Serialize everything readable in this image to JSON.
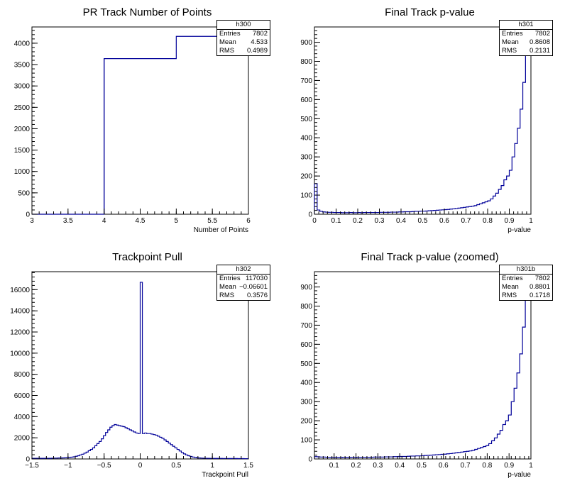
{
  "chart_data": [
    {
      "type": "histogram",
      "title": "PR Track Number of Points",
      "xlabel": "Number of Points",
      "ylabel": "",
      "xlim": [
        3,
        6
      ],
      "ylim": [
        0,
        4380
      ],
      "xticks": [
        "3",
        "3.5",
        "4",
        "4.5",
        "5",
        "5.5",
        "6"
      ],
      "xtick_values": [
        3,
        3.5,
        4,
        4.5,
        5,
        5.5,
        6
      ],
      "yticks": [
        "0",
        "500",
        "1000",
        "1500",
        "2000",
        "2500",
        "3000",
        "3500",
        "4000"
      ],
      "ytick_values": [
        0,
        500,
        1000,
        1500,
        2000,
        2500,
        3000,
        3500,
        4000
      ],
      "bin_edges": [
        3,
        4,
        5,
        6
      ],
      "values": [
        0,
        3640,
        4160
      ],
      "stats": {
        "name": "h300",
        "rows": [
          [
            "Entries",
            "7802"
          ],
          [
            "Mean",
            "4.533"
          ],
          [
            "RMS",
            "0.4989"
          ]
        ]
      }
    },
    {
      "type": "histogram",
      "title": "Final Track p-value",
      "xlabel": "p-value",
      "ylabel": "",
      "xlim": [
        0,
        1
      ],
      "ylim": [
        0,
        980
      ],
      "xticks": [
        "0",
        "0.1",
        "0.2",
        "0.3",
        "0.4",
        "0.5",
        "0.6",
        "0.7",
        "0.8",
        "0.9",
        "1"
      ],
      "xtick_values": [
        0,
        0.1,
        0.2,
        0.3,
        0.4,
        0.5,
        0.6,
        0.7,
        0.8,
        0.9,
        1
      ],
      "yticks": [
        "0",
        "100",
        "200",
        "300",
        "400",
        "500",
        "600",
        "700",
        "800",
        "900"
      ],
      "ytick_values": [
        0,
        100,
        200,
        300,
        400,
        500,
        600,
        700,
        800,
        900
      ],
      "bin_range": [
        0,
        1
      ],
      "values": [
        160,
        22,
        15,
        12,
        11,
        10,
        10,
        9,
        9,
        9,
        8,
        8,
        8,
        9,
        8,
        8,
        9,
        8,
        9,
        9,
        9,
        9,
        9,
        9,
        10,
        10,
        10,
        10,
        11,
        11,
        11,
        12,
        12,
        13,
        13,
        13,
        14,
        15,
        15,
        16,
        16,
        17,
        18,
        19,
        20,
        21,
        22,
        23,
        24,
        25,
        27,
        28,
        30,
        32,
        34,
        36,
        38,
        40,
        42,
        45,
        50,
        55,
        60,
        65,
        70,
        80,
        95,
        110,
        130,
        150,
        180,
        200,
        230,
        300,
        370,
        450,
        550,
        690,
        830,
        980
      ],
      "stats": {
        "name": "h301",
        "rows": [
          [
            "Entries",
            "7802"
          ],
          [
            "Mean",
            "0.8608"
          ],
          [
            "RMS",
            "0.2131"
          ]
        ]
      }
    },
    {
      "type": "histogram",
      "title": "Trackpoint Pull",
      "xlabel": "Trackpoint Pull",
      "ylabel": "",
      "xlim": [
        -1.5,
        1.5
      ],
      "ylim": [
        0,
        17700
      ],
      "xticks": [
        "−1.5",
        "−1",
        "−0.5",
        "0",
        "0.5",
        "1",
        "1.5"
      ],
      "xtick_values": [
        -1.5,
        -1,
        -0.5,
        0,
        0.5,
        1,
        1.5
      ],
      "yticks": [
        "0",
        "2000",
        "4000",
        "6000",
        "8000",
        "10000",
        "12000",
        "14000",
        "16000"
      ],
      "ytick_values": [
        0,
        2000,
        4000,
        6000,
        8000,
        10000,
        12000,
        14000,
        16000
      ],
      "bin_range": [
        -1.5,
        1.5
      ],
      "values": [
        60,
        60,
        60,
        60,
        60,
        60,
        60,
        60,
        60,
        70,
        80,
        80,
        90,
        90,
        100,
        110,
        120,
        140,
        170,
        200,
        250,
        300,
        380,
        450,
        550,
        650,
        780,
        900,
        1050,
        1250,
        1450,
        1650,
        1900,
        2200,
        2500,
        2750,
        3000,
        3150,
        3250,
        3200,
        3150,
        3100,
        3050,
        2950,
        2850,
        2750,
        2650,
        2550,
        2450,
        2400,
        16700,
        2400,
        2450,
        2400,
        2400,
        2350,
        2300,
        2250,
        2150,
        2050,
        1950,
        1800,
        1650,
        1500,
        1350,
        1200,
        1050,
        900,
        750,
        600,
        480,
        380,
        300,
        240,
        180,
        140,
        110,
        90,
        80,
        70,
        60,
        60,
        55,
        55,
        50,
        50,
        50,
        50,
        45,
        45,
        45,
        40,
        40,
        40,
        40,
        35,
        35,
        35,
        30,
        30
      ],
      "stats": {
        "name": "h302",
        "rows": [
          [
            "Entries",
            "117030"
          ],
          [
            "Mean",
            "−0.06601"
          ],
          [
            "RMS",
            "0.3576"
          ]
        ]
      }
    },
    {
      "type": "histogram",
      "title": "Final Track p-value (zoomed)",
      "xlabel": "p-value",
      "ylabel": "",
      "xlim": [
        0.01,
        1
      ],
      "ylim": [
        0,
        980
      ],
      "xticks": [
        "0.1",
        "0.2",
        "0.3",
        "0.4",
        "0.5",
        "0.6",
        "0.7",
        "0.8",
        "0.9",
        "1"
      ],
      "xtick_values": [
        0.1,
        0.2,
        0.3,
        0.4,
        0.5,
        0.6,
        0.7,
        0.8,
        0.9,
        1
      ],
      "yticks": [
        "0",
        "100",
        "200",
        "300",
        "400",
        "500",
        "600",
        "700",
        "800",
        "900"
      ],
      "ytick_values": [
        0,
        100,
        200,
        300,
        400,
        500,
        600,
        700,
        800,
        900
      ],
      "bin_range": [
        0.01,
        1
      ],
      "values": [
        12,
        11,
        10,
        10,
        9,
        9,
        9,
        8,
        8,
        8,
        9,
        8,
        8,
        9,
        8,
        9,
        9,
        9,
        9,
        9,
        9,
        10,
        10,
        10,
        10,
        11,
        11,
        11,
        12,
        12,
        13,
        13,
        13,
        14,
        15,
        15,
        16,
        16,
        17,
        18,
        19,
        20,
        21,
        22,
        23,
        24,
        25,
        27,
        28,
        30,
        32,
        34,
        36,
        38,
        40,
        42,
        45,
        50,
        55,
        60,
        65,
        70,
        80,
        95,
        110,
        130,
        150,
        180,
        200,
        230,
        300,
        370,
        450,
        550,
        690,
        830,
        980
      ],
      "stats": {
        "name": "h301b",
        "rows": [
          [
            "Entries",
            "7802"
          ],
          [
            "Mean",
            "0.8801"
          ],
          [
            "RMS",
            "0.1718"
          ]
        ]
      }
    }
  ]
}
